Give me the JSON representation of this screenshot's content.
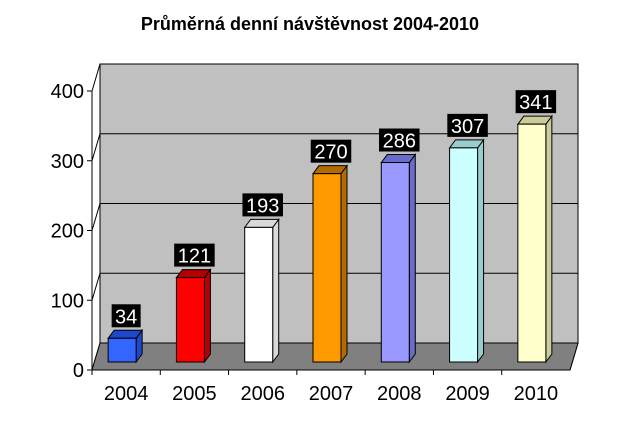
{
  "chart_data": {
    "type": "bar",
    "title": "Průměrná denní návštěvnost 2004-2010",
    "xlabel": "",
    "ylabel": "",
    "categories": [
      "2004",
      "2005",
      "2006",
      "2007",
      "2008",
      "2009",
      "2010"
    ],
    "values": [
      34,
      121,
      193,
      270,
      286,
      307,
      341
    ],
    "ylim": [
      0,
      400
    ],
    "yticks": [
      "0",
      "100",
      "200",
      "300",
      "400"
    ],
    "grid": true,
    "legend": "none",
    "style": "3d-column",
    "colors": [
      "#3366ff",
      "#ff0000",
      "#ffffff",
      "#ff9900",
      "#9999ff",
      "#ccffff",
      "#ffffcc"
    ],
    "top_colors": [
      "#1f47cc",
      "#b30000",
      "#d9d9d9",
      "#b36b00",
      "#6b6bcc",
      "#99cccc",
      "#cccc99"
    ],
    "wall_color": "#c0c0c0",
    "floor_color": "#808080",
    "label_bg": "#000000",
    "label_color": "#ffffff"
  }
}
